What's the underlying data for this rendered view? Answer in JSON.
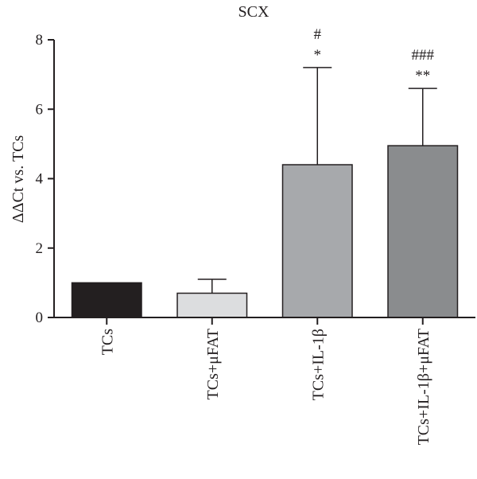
{
  "chart_data": {
    "type": "bar",
    "title": "SCX",
    "ylabel": "ΔΔCt vs. TCs",
    "xlabel": "",
    "ylim": [
      0,
      8
    ],
    "yticks": [
      0,
      2,
      4,
      6,
      8
    ],
    "categories": [
      "TCs",
      "TCs+μFAT",
      "TCs+IL-1β",
      "TCs+IL-1β+μFAT"
    ],
    "values": [
      1.0,
      0.7,
      4.4,
      4.95
    ],
    "error_upper": [
      0,
      0.4,
      2.8,
      1.65
    ],
    "colors": [
      "#231f20",
      "#dcdddf",
      "#a7a9ac",
      "#8a8c8e"
    ],
    "significance": [
      {
        "category": 2,
        "lines": [
          "#",
          "*"
        ]
      },
      {
        "category": 3,
        "lines": [
          "###",
          "**"
        ]
      }
    ],
    "grid": false
  }
}
